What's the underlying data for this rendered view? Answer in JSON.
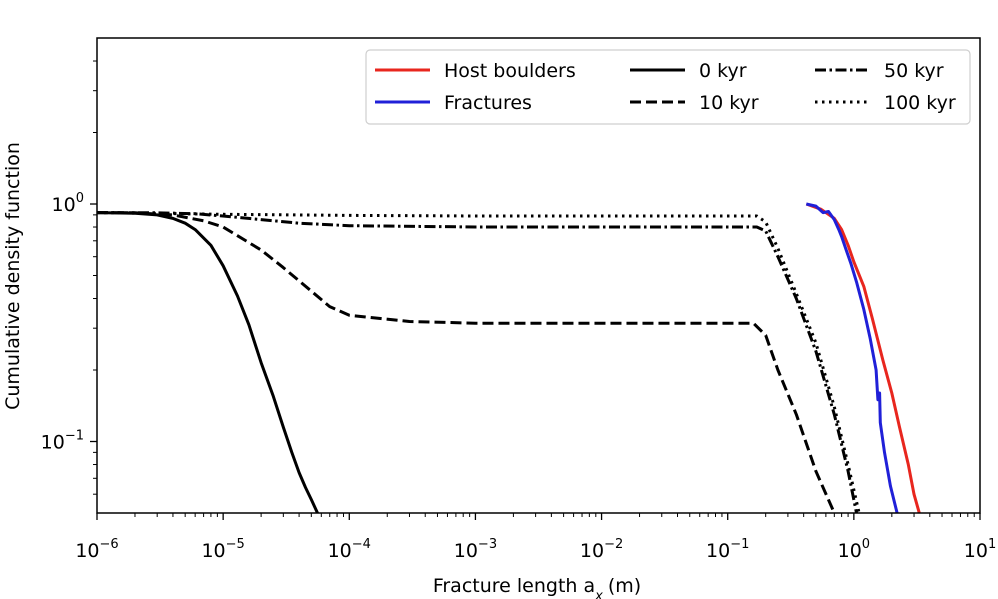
{
  "chart_data": {
    "type": "line",
    "title": "",
    "xlabel": "Fracture length a",
    "xlabel_sub": "x",
    "xlabel_unit": "(m)",
    "ylabel": "Cumulative density function",
    "xscale": "log",
    "yscale": "log",
    "xlim": [
      1e-06,
      10
    ],
    "ylim": [
      0.05,
      5
    ],
    "grid": false,
    "legend_position": "top-right",
    "x_ticks": [
      {
        "base": "10",
        "exp": "−6"
      },
      {
        "base": "10",
        "exp": "−5"
      },
      {
        "base": "10",
        "exp": "−4"
      },
      {
        "base": "10",
        "exp": "−3"
      },
      {
        "base": "10",
        "exp": "−2"
      },
      {
        "base": "10",
        "exp": "−1"
      },
      {
        "base": "10",
        "exp": "0"
      },
      {
        "base": "10",
        "exp": "1"
      }
    ],
    "y_ticks": [
      {
        "base": "10",
        "exp": "0"
      },
      {
        "base": "10",
        "exp": "−1"
      }
    ],
    "series": [
      {
        "name": "0 kyr",
        "color": "#000000",
        "dash": "solid",
        "x": [
          1e-06,
          2e-06,
          3e-06,
          4e-06,
          5e-06,
          6e-06,
          8e-06,
          1e-05,
          1.3e-05,
          1.6e-05,
          2e-05,
          2.5e-05,
          3e-05,
          3.5e-05,
          4e-05,
          4.5e-05,
          5e-05,
          5.6e-05
        ],
        "y": [
          0.92,
          0.915,
          0.9,
          0.87,
          0.83,
          0.78,
          0.67,
          0.55,
          0.41,
          0.31,
          0.215,
          0.155,
          0.115,
          0.09,
          0.074,
          0.064,
          0.057,
          0.05
        ]
      },
      {
        "name": "10 kyr",
        "color": "#000000",
        "dash": "dash",
        "x": [
          1e-06,
          2e-06,
          4e-06,
          7e-06,
          1e-05,
          2e-05,
          3e-05,
          5e-05,
          7e-05,
          0.0001,
          0.0003,
          0.001,
          0.01,
          0.1,
          0.16,
          0.2,
          0.25,
          0.35,
          0.5,
          0.7
        ],
        "y": [
          0.92,
          0.918,
          0.9,
          0.85,
          0.8,
          0.64,
          0.54,
          0.43,
          0.37,
          0.34,
          0.32,
          0.315,
          0.315,
          0.315,
          0.315,
          0.28,
          0.2,
          0.13,
          0.075,
          0.05
        ]
      },
      {
        "name": "50 kyr",
        "color": "#000000",
        "dash": "dashdot",
        "x": [
          1e-06,
          3e-06,
          6e-06,
          1e-05,
          2e-05,
          4e-05,
          0.0001,
          0.001,
          0.01,
          0.1,
          0.17,
          0.2,
          0.25,
          0.35,
          0.5,
          0.7,
          0.9,
          1.05
        ],
        "y": [
          0.92,
          0.918,
          0.91,
          0.89,
          0.86,
          0.83,
          0.81,
          0.8,
          0.8,
          0.8,
          0.8,
          0.77,
          0.6,
          0.4,
          0.24,
          0.13,
          0.075,
          0.05
        ]
      },
      {
        "name": "100 kyr",
        "color": "#000000",
        "dash": "dot",
        "x": [
          1e-06,
          1e-05,
          0.0001,
          0.001,
          0.01,
          0.1,
          0.17,
          0.2,
          0.25,
          0.35,
          0.5,
          0.7,
          0.9,
          1.1
        ],
        "y": [
          0.92,
          0.905,
          0.895,
          0.89,
          0.89,
          0.89,
          0.89,
          0.84,
          0.65,
          0.42,
          0.26,
          0.14,
          0.08,
          0.05
        ]
      },
      {
        "name": "Host boulders",
        "color": "#e8261e",
        "dash": "solid",
        "x": [
          0.42,
          0.55,
          0.7,
          0.8,
          0.9,
          1.0,
          1.2,
          1.4,
          1.7,
          2.0,
          2.3,
          2.7,
          3.0,
          3.3
        ],
        "y": [
          1.0,
          0.95,
          0.87,
          0.78,
          0.67,
          0.57,
          0.45,
          0.33,
          0.22,
          0.16,
          0.115,
          0.08,
          0.06,
          0.05
        ]
      },
      {
        "name": "Fractures",
        "color": "#2020d8",
        "dash": "solid",
        "x": [
          0.42,
          0.5,
          0.57,
          0.63,
          0.7,
          0.76,
          0.8,
          0.87,
          0.95,
          1.05,
          1.2,
          1.35,
          1.5,
          1.55,
          1.6,
          1.62,
          1.75,
          1.95,
          2.2
        ],
        "y": [
          1.0,
          0.98,
          0.92,
          0.93,
          0.86,
          0.78,
          0.73,
          0.64,
          0.56,
          0.47,
          0.36,
          0.27,
          0.2,
          0.15,
          0.16,
          0.12,
          0.09,
          0.065,
          0.05
        ]
      }
    ],
    "legend": [
      {
        "label": "Host boulders",
        "color": "#e8261e",
        "dash": "solid"
      },
      {
        "label": "Fractures",
        "color": "#2020d8",
        "dash": "solid"
      },
      {
        "label": "0 kyr",
        "color": "#000000",
        "dash": "solid"
      },
      {
        "label": "10 kyr",
        "color": "#000000",
        "dash": "dash"
      },
      {
        "label": "50 kyr",
        "color": "#000000",
        "dash": "dashdot"
      },
      {
        "label": "100 kyr",
        "color": "#000000",
        "dash": "dot"
      }
    ]
  }
}
